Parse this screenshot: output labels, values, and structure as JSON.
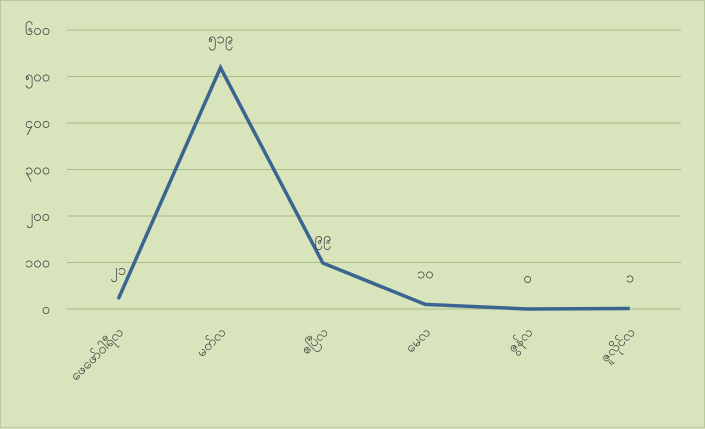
{
  "chart_data": {
    "type": "line",
    "title": "",
    "xlabel": "",
    "ylabel": "",
    "categories": [
      "ဖေဖော်ဝါရီလ",
      "မတ်လ",
      "ဧပြီလ",
      "မေလ",
      "ဇွန်လ",
      "ဇူလိုင်လ"
    ],
    "series": [
      {
        "values": [
          21,
          519,
          99,
          10,
          0,
          1
        ]
      }
    ],
    "data_labels": [
      "၂၁",
      "၅၁၉",
      "၉၉",
      "၁၀",
      "၀",
      "၁"
    ],
    "y_ticks": [
      0,
      100,
      200,
      300,
      400,
      500,
      600
    ],
    "y_tick_labels": [
      "၀",
      "၁၀၀",
      "၂၀၀",
      "၃၀၀",
      "၄၀၀",
      "၅၀၀",
      "၆၀၀"
    ],
    "ylim": [
      0,
      600
    ],
    "grid": true,
    "legend": "none",
    "colors": {
      "line": "#3b6591",
      "grid": "#a9bd85",
      "background": "#d7e4bc",
      "text": "#404040"
    }
  }
}
